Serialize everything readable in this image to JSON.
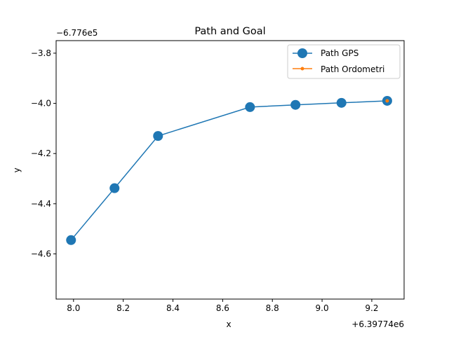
{
  "chart_data": {
    "type": "line",
    "title": "Path and Goal",
    "xlabel": "x",
    "ylabel": "y",
    "x_offset_label": "+6.39774e6",
    "y_offset_label": "−6.776e5",
    "xlim": [
      7.93,
      9.33
    ],
    "ylim": [
      -4.78,
      -3.75
    ],
    "x_ticks": [
      {
        "value": 8.0,
        "label": "8.0"
      },
      {
        "value": 8.2,
        "label": "8.2"
      },
      {
        "value": 8.4,
        "label": "8.4"
      },
      {
        "value": 8.6,
        "label": "8.6"
      },
      {
        "value": 8.8,
        "label": "8.8"
      },
      {
        "value": 9.0,
        "label": "9.0"
      },
      {
        "value": 9.2,
        "label": "9.2"
      }
    ],
    "y_ticks": [
      {
        "value": -3.8,
        "label": "−3.8"
      },
      {
        "value": -4.0,
        "label": "−4.0"
      },
      {
        "value": -4.2,
        "label": "−4.2"
      },
      {
        "value": -4.4,
        "label": "−4.4"
      },
      {
        "value": -4.6,
        "label": "−4.6"
      }
    ],
    "grid": false,
    "legend_position": "top-right",
    "series": [
      {
        "name": "Path GPS",
        "color": "#1f77b4",
        "marker": "large-circle",
        "x": [
          7.99,
          8.165,
          8.34,
          8.71,
          8.893,
          9.078,
          9.262
        ],
        "y": [
          -4.545,
          -4.338,
          -4.13,
          -4.015,
          -4.006,
          -3.998,
          -3.99
        ]
      },
      {
        "name": "Path Ordometri",
        "color": "#ff7f0e",
        "marker": "small-circle",
        "x": [
          9.262
        ],
        "y": [
          -3.99
        ]
      }
    ]
  }
}
